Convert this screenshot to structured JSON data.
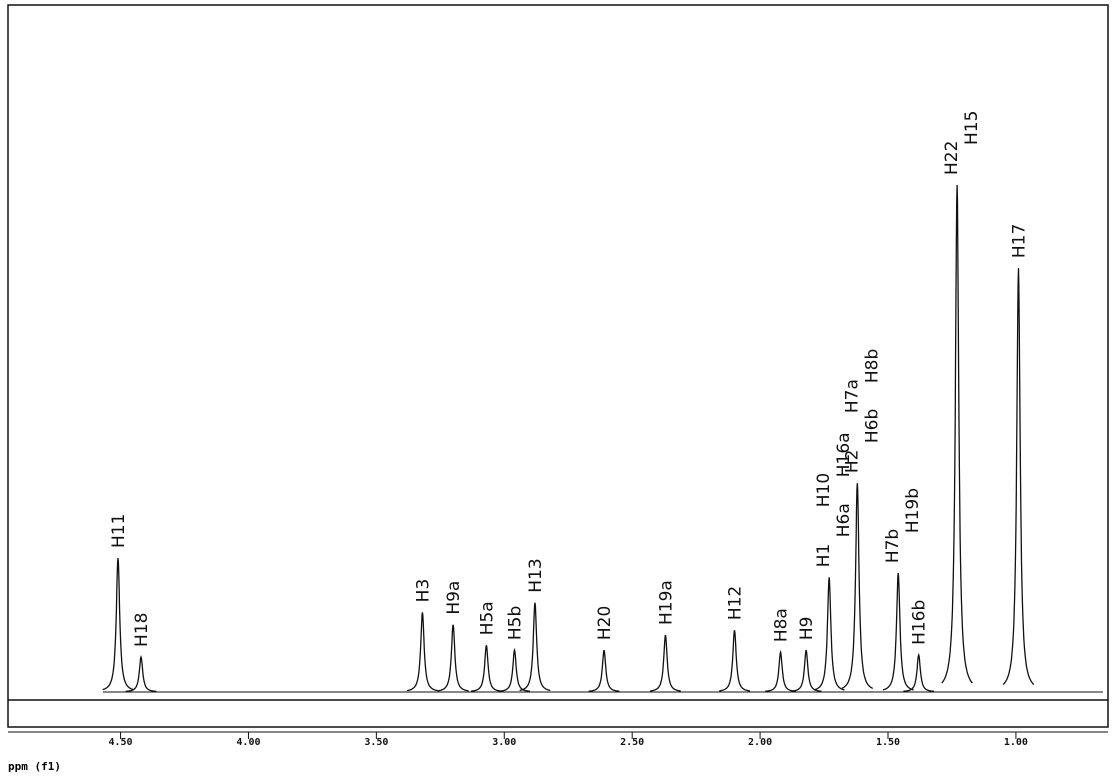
{
  "chart_data": {
    "type": "nmr",
    "x_label": "ppm (f1)",
    "xlim": [
      4.94,
      0.64
    ],
    "ylim": [
      0,
      100
    ],
    "xticks": [
      {
        "value": 4.5,
        "label": "4.50"
      },
      {
        "value": 4.0,
        "label": "4.00"
      },
      {
        "value": 3.5,
        "label": "3.50"
      },
      {
        "value": 3.0,
        "label": "3.00"
      },
      {
        "value": 2.5,
        "label": "2.50"
      },
      {
        "value": 2.0,
        "label": "2.00"
      },
      {
        "value": 1.5,
        "label": "1.50"
      },
      {
        "value": 1.0,
        "label": "1.00"
      }
    ],
    "color": "#111111",
    "peaks": [
      {
        "labels": [
          "H11"
        ],
        "ppm": 4.51,
        "height": 19.5
      },
      {
        "labels": [
          "H18"
        ],
        "ppm": 4.42,
        "height": 5.1
      },
      {
        "labels": [
          "H3"
        ],
        "ppm": 3.32,
        "height": 11.6
      },
      {
        "labels": [
          "H9a"
        ],
        "ppm": 3.2,
        "height": 9.8
      },
      {
        "labels": [
          "H5a"
        ],
        "ppm": 3.07,
        "height": 6.8
      },
      {
        "labels": [
          "H5b"
        ],
        "ppm": 2.96,
        "height": 6.1
      },
      {
        "labels": [
          "H13"
        ],
        "ppm": 2.88,
        "height": 13.0
      },
      {
        "labels": [
          "H20"
        ],
        "ppm": 2.61,
        "height": 6.1
      },
      {
        "labels": [
          "H19a"
        ],
        "ppm": 2.37,
        "height": 8.3
      },
      {
        "labels": [
          "H12"
        ],
        "ppm": 2.1,
        "height": 9.0
      },
      {
        "labels": [
          "H8a"
        ],
        "ppm": 1.92,
        "height": 5.8
      },
      {
        "labels": [
          "H9"
        ],
        "ppm": 1.82,
        "height": 6.1
      },
      {
        "labels": [
          "H1",
          "H6a",
          "H10",
          "H16a"
        ],
        "ppm": 1.73,
        "height": 16.7
      },
      {
        "labels": [
          "H2",
          "H6b",
          "H7a",
          "H8b"
        ],
        "ppm": 1.62,
        "height": 30.4
      },
      {
        "labels": [
          "H7b",
          "H19b"
        ],
        "ppm": 1.46,
        "height": 17.3
      },
      {
        "labels": [
          "H16b"
        ],
        "ppm": 1.38,
        "height": 5.4
      },
      {
        "labels": [
          "H22",
          "H15"
        ],
        "ppm": 1.23,
        "height": 73.8
      },
      {
        "labels": [
          "H17"
        ],
        "ppm": 0.99,
        "height": 61.7
      }
    ]
  }
}
